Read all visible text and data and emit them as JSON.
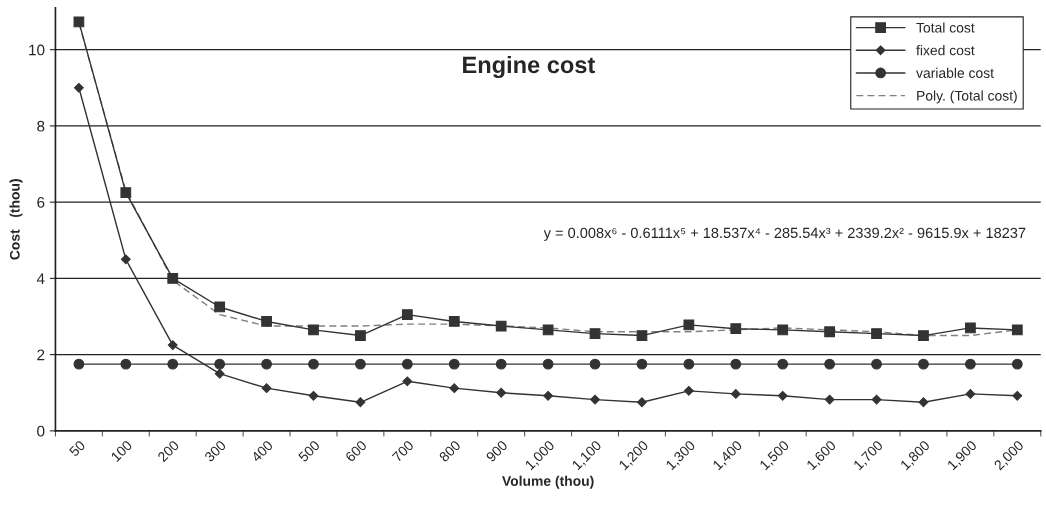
{
  "chart_data": {
    "type": "line",
    "title": "Engine cost",
    "xlabel": "Volume (thou)",
    "ylabel": "Cost   (thou)",
    "categories": [
      "50",
      "100",
      "200",
      "300",
      "400",
      "500",
      "600",
      "700",
      "800",
      "900",
      "1,000",
      "1,100",
      "1,200",
      "1,300",
      "1,400",
      "1,500",
      "1,600",
      "1,700",
      "1,800",
      "1,900",
      "2,000"
    ],
    "series": [
      {
        "name": "Total cost",
        "color": "#333333",
        "marker": "square",
        "line_style": "solid",
        "values": [
          10.73,
          6.25,
          4.0,
          3.25,
          2.87,
          2.65,
          2.5,
          3.05,
          2.87,
          2.75,
          2.65,
          2.55,
          2.5,
          2.78,
          2.68,
          2.65,
          2.6,
          2.55,
          2.5,
          2.7,
          2.65
        ]
      },
      {
        "name": "fixed cost",
        "color": "#333333",
        "marker": "diamond",
        "line_style": "solid",
        "values": [
          9.0,
          4.5,
          2.25,
          1.5,
          1.12,
          0.92,
          0.75,
          1.3,
          1.12,
          1.0,
          0.92,
          0.82,
          0.75,
          1.05,
          0.97,
          0.92,
          0.82,
          0.82,
          0.75,
          0.97,
          0.92
        ]
      },
      {
        "name": "variable cost",
        "color": "#333333",
        "marker": "circle",
        "line_style": "solid",
        "values": [
          1.75,
          1.75,
          1.75,
          1.75,
          1.75,
          1.75,
          1.75,
          1.75,
          1.75,
          1.75,
          1.75,
          1.75,
          1.75,
          1.75,
          1.75,
          1.75,
          1.75,
          1.75,
          1.75,
          1.75,
          1.75
        ]
      },
      {
        "name": "Poly. (Total cost)",
        "color": "#808080",
        "marker": "none",
        "line_style": "dashed",
        "values": [
          10.7,
          6.3,
          3.95,
          3.05,
          2.75,
          2.75,
          2.75,
          2.8,
          2.8,
          2.75,
          2.7,
          2.6,
          2.6,
          2.6,
          2.65,
          2.7,
          2.65,
          2.6,
          2.5,
          2.5,
          2.65
        ]
      }
    ],
    "annotations": [
      "y = 0.008x⁶ - 0.6111x⁵ + 18.537x⁴ - 285.54x³ + 2339.2x² - 9615.9x + 18237"
    ],
    "ylim": [
      0,
      11.1
    ],
    "yticks": [
      0,
      2,
      4,
      6,
      8,
      10
    ],
    "grid": "y",
    "legend": "top right"
  }
}
